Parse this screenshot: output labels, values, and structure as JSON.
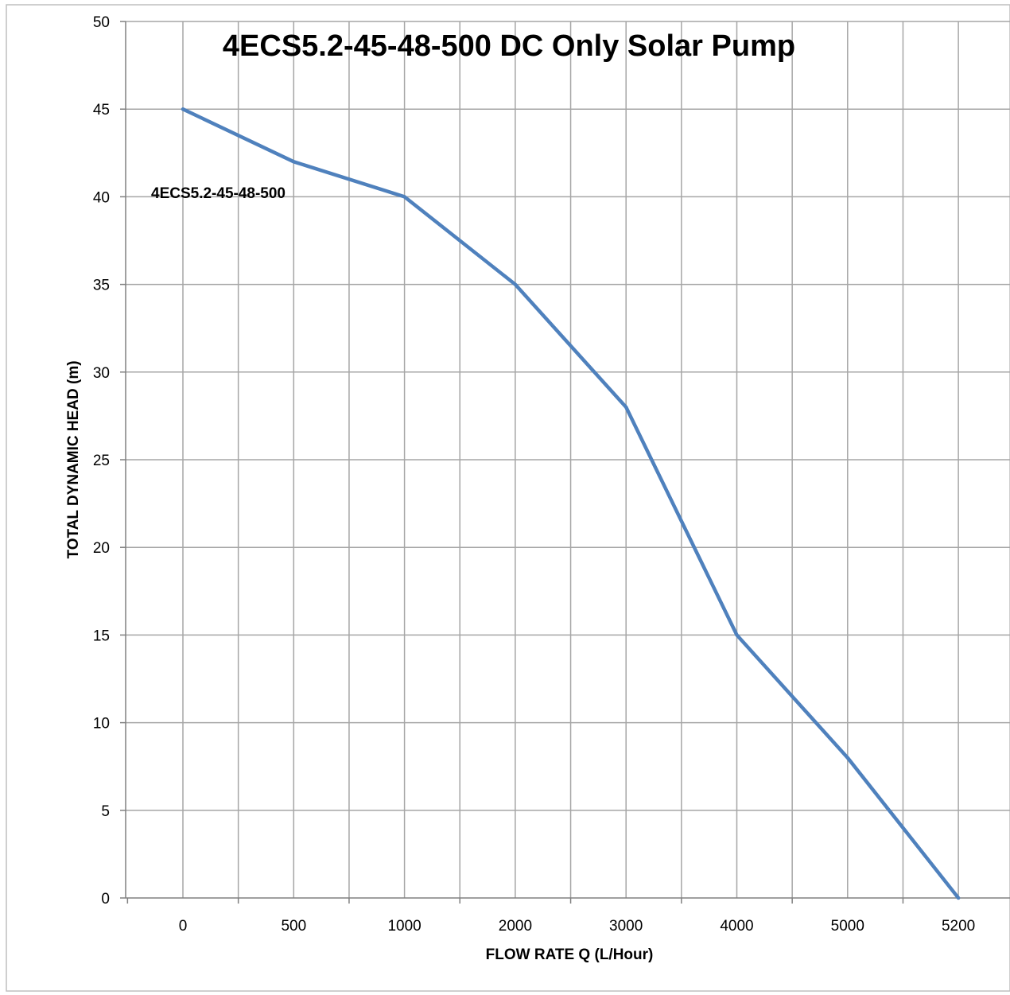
{
  "chart_data": {
    "type": "line",
    "title": "4ECS5.2-45-48-500 DC Only Solar Pump",
    "xlabel": "FLOW RATE Q (L/Hour)",
    "ylabel": "TOTAL DYNAMIC HEAD (m)",
    "categories": [
      "0",
      "500",
      "1000",
      "2000",
      "3000",
      "4000",
      "5000",
      "5200"
    ],
    "series": [
      {
        "name": "4ECS5.2-45-48-500",
        "values": [
          45,
          42,
          40,
          35,
          28,
          15,
          8,
          0
        ]
      }
    ],
    "ylim": [
      0,
      50
    ],
    "yticks": [
      "0",
      "5",
      "10",
      "15",
      "20",
      "25",
      "30",
      "35",
      "40",
      "45",
      "50"
    ],
    "grid": true,
    "line_color": "#4f81bd",
    "grid_color": "#a6a6a6"
  }
}
